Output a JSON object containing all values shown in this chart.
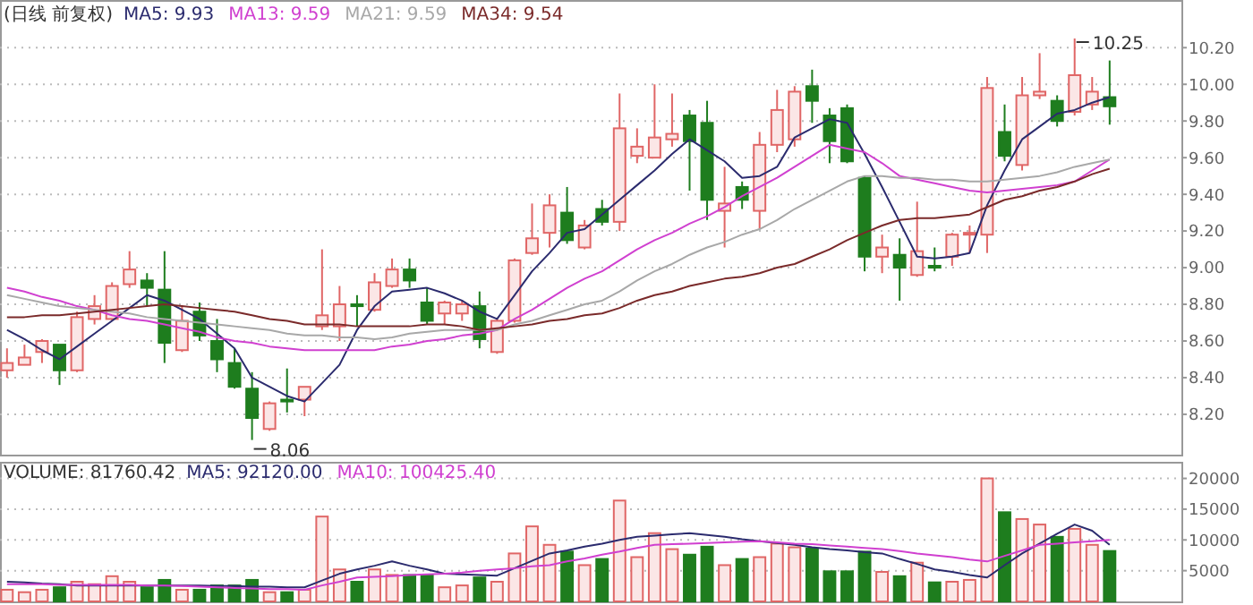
{
  "chart_data": [
    {
      "type": "candlestick",
      "title": "(日线 前复权)",
      "grid": "y",
      "tick_labels": "y",
      "categories": [
        null,
        null,
        null,
        null,
        null,
        null,
        null,
        null,
        null,
        null,
        null,
        null,
        null,
        null,
        null,
        null,
        null,
        null,
        null,
        null,
        null,
        null,
        null,
        null,
        null,
        null,
        null,
        null,
        null,
        null,
        null,
        null,
        null,
        null,
        null,
        null,
        null,
        null,
        null,
        null,
        null,
        null,
        null,
        null,
        null,
        null,
        null,
        null,
        null,
        null,
        null,
        null,
        null,
        null,
        null,
        null,
        null,
        null,
        null,
        null,
        null,
        null,
        null,
        null
      ],
      "ylim": [
        7.98,
        10.46
      ],
      "yticks": [
        {
          "value": 8.2,
          "label": "8.20"
        },
        {
          "value": 8.4,
          "label": "8.40"
        },
        {
          "value": 8.6,
          "label": "8.60"
        },
        {
          "value": 8.8,
          "label": "8.80"
        },
        {
          "value": 9.0,
          "label": "9.00"
        },
        {
          "value": 9.2,
          "label": "9.20"
        },
        {
          "value": 9.4,
          "label": "9.40"
        },
        {
          "value": 9.6,
          "label": "9.60"
        },
        {
          "value": 9.8,
          "label": "9.80"
        },
        {
          "value": 10.0,
          "label": "10.00"
        },
        {
          "value": 10.2,
          "label": "10.20"
        }
      ],
      "ohlc": [
        [
          8.44,
          8.56,
          8.4,
          8.48
        ],
        [
          8.47,
          8.58,
          8.47,
          8.51
        ],
        [
          8.54,
          8.61,
          8.48,
          8.6
        ],
        [
          8.58,
          8.58,
          8.36,
          8.44
        ],
        [
          8.44,
          8.76,
          8.43,
          8.73
        ],
        [
          8.72,
          8.85,
          8.69,
          8.79
        ],
        [
          8.72,
          8.92,
          8.71,
          8.9
        ],
        [
          8.91,
          9.09,
          8.89,
          8.99
        ],
        [
          8.93,
          8.97,
          8.79,
          8.89
        ],
        [
          8.88,
          9.09,
          8.48,
          8.59
        ],
        [
          8.55,
          8.79,
          8.54,
          8.71
        ],
        [
          8.76,
          8.81,
          8.6,
          8.63
        ],
        [
          8.6,
          8.72,
          8.43,
          8.5
        ],
        [
          8.48,
          8.56,
          8.34,
          8.35
        ],
        [
          8.34,
          8.43,
          8.06,
          8.18
        ],
        [
          8.12,
          8.27,
          8.11,
          8.26
        ],
        [
          8.28,
          8.45,
          8.21,
          8.27
        ],
        [
          8.28,
          8.35,
          8.19,
          8.35
        ],
        [
          8.68,
          9.1,
          8.66,
          8.74
        ],
        [
          8.68,
          8.9,
          8.6,
          8.8
        ],
        [
          8.8,
          8.85,
          8.68,
          8.79
        ],
        [
          8.77,
          8.97,
          8.76,
          8.92
        ],
        [
          8.9,
          9.05,
          8.89,
          8.99
        ],
        [
          8.99,
          9.05,
          8.89,
          8.93
        ],
        [
          8.81,
          8.89,
          8.69,
          8.71
        ],
        [
          8.75,
          8.82,
          8.69,
          8.81
        ],
        [
          8.75,
          8.82,
          8.71,
          8.8
        ],
        [
          8.79,
          8.87,
          8.56,
          8.61
        ],
        [
          8.54,
          8.72,
          8.53,
          8.71
        ],
        [
          8.71,
          9.05,
          8.7,
          9.04
        ],
        [
          9.08,
          9.35,
          9.07,
          9.16
        ],
        [
          9.19,
          9.4,
          9.11,
          9.34
        ],
        [
          9.3,
          9.44,
          9.13,
          9.15
        ],
        [
          9.11,
          9.26,
          9.1,
          9.23
        ],
        [
          9.32,
          9.37,
          9.23,
          9.25
        ],
        [
          9.25,
          9.95,
          9.2,
          9.76
        ],
        [
          9.61,
          9.76,
          9.57,
          9.66
        ],
        [
          9.6,
          10.0,
          9.6,
          9.71
        ],
        [
          9.7,
          9.95,
          9.66,
          9.73
        ],
        [
          9.83,
          9.86,
          9.42,
          9.69
        ],
        [
          9.79,
          9.91,
          9.26,
          9.37
        ],
        [
          9.31,
          9.55,
          9.11,
          9.35
        ],
        [
          9.44,
          9.47,
          9.32,
          9.37
        ],
        [
          9.31,
          9.74,
          9.21,
          9.67
        ],
        [
          9.67,
          9.97,
          9.63,
          9.86
        ],
        [
          9.7,
          9.99,
          9.66,
          9.96
        ],
        [
          9.99,
          10.08,
          9.79,
          9.91
        ],
        [
          9.83,
          9.87,
          9.57,
          9.69
        ],
        [
          9.87,
          9.89,
          9.57,
          9.58
        ],
        [
          9.49,
          9.5,
          8.98,
          9.06
        ],
        [
          9.06,
          9.18,
          8.97,
          9.11
        ],
        [
          9.07,
          9.16,
          8.82,
          9.0
        ],
        [
          8.96,
          9.36,
          8.95,
          9.09
        ],
        [
          9.01,
          9.11,
          8.98,
          9.0
        ],
        [
          9.06,
          9.19,
          9.01,
          9.18
        ],
        [
          9.18,
          9.23,
          9.08,
          9.19
        ],
        [
          9.18,
          10.04,
          9.08,
          9.98
        ],
        [
          9.74,
          9.89,
          9.58,
          9.61
        ],
        [
          9.56,
          10.04,
          9.53,
          9.94
        ],
        [
          9.94,
          10.17,
          9.92,
          9.96
        ],
        [
          9.91,
          9.94,
          9.77,
          9.8
        ],
        [
          9.85,
          10.25,
          9.83,
          10.05
        ],
        [
          9.89,
          10.04,
          9.86,
          9.96
        ],
        [
          9.93,
          10.13,
          9.78,
          9.88
        ]
      ],
      "colors": [
        "#e06666",
        "#e06666",
        "#e06666",
        "#1e7d1e",
        "#e06666",
        "#e06666",
        "#e06666",
        "#e06666",
        "#1e7d1e",
        "#1e7d1e",
        "#e06666",
        "#1e7d1e",
        "#1e7d1e",
        "#1e7d1e",
        "#1e7d1e",
        "#e06666",
        "#1e7d1e",
        "#e06666",
        "#e06666",
        "#e06666",
        "#1e7d1e",
        "#e06666",
        "#e06666",
        "#1e7d1e",
        "#1e7d1e",
        "#e06666",
        "#e06666",
        "#1e7d1e",
        "#e06666",
        "#e06666",
        "#e06666",
        "#e06666",
        "#1e7d1e",
        "#e06666",
        "#1e7d1e",
        "#e06666",
        "#e06666",
        "#e06666",
        "#e06666",
        "#1e7d1e",
        "#1e7d1e",
        "#e06666",
        "#1e7d1e",
        "#e06666",
        "#e06666",
        "#e06666",
        "#1e7d1e",
        "#1e7d1e",
        "#1e7d1e",
        "#1e7d1e",
        "#e06666",
        "#1e7d1e",
        "#e06666",
        "#1e7d1e",
        "#e06666",
        "#e06666",
        "#e06666",
        "#1e7d1e",
        "#e06666",
        "#e06666",
        "#1e7d1e",
        "#e06666",
        "#e06666",
        "#1e7d1e"
      ],
      "series": [
        {
          "type": "line",
          "name": "MA5: 9.93",
          "color": "#2b2b6e",
          "values": [
            8.66,
            8.61,
            8.55,
            8.5,
            8.57,
            8.64,
            8.71,
            8.78,
            8.85,
            8.82,
            8.77,
            8.72,
            8.64,
            8.56,
            8.4,
            8.35,
            8.3,
            8.27,
            8.37,
            8.47,
            8.66,
            8.79,
            8.87,
            8.88,
            8.89,
            8.86,
            8.82,
            8.76,
            8.72,
            8.85,
            8.98,
            9.08,
            9.19,
            9.21,
            9.29,
            9.37,
            9.45,
            9.53,
            9.62,
            9.7,
            9.64,
            9.58,
            9.49,
            9.5,
            9.55,
            9.71,
            9.76,
            9.81,
            9.79,
            9.62,
            9.44,
            9.25,
            9.06,
            9.05,
            9.06,
            9.08,
            9.34,
            9.53,
            9.7,
            9.77,
            9.84,
            9.86,
            9.9,
            9.93
          ]
        },
        {
          "type": "line",
          "name": "MA13: 9.59",
          "color": "#d040d0",
          "values": [
            8.89,
            8.87,
            8.84,
            8.82,
            8.79,
            8.77,
            8.74,
            8.72,
            8.71,
            8.69,
            8.67,
            8.65,
            8.62,
            8.6,
            8.59,
            8.57,
            8.56,
            8.55,
            8.55,
            8.55,
            8.55,
            8.55,
            8.57,
            8.58,
            8.6,
            8.61,
            8.63,
            8.64,
            8.66,
            8.72,
            8.77,
            8.83,
            8.89,
            8.94,
            8.98,
            9.04,
            9.1,
            9.15,
            9.19,
            9.24,
            9.28,
            9.33,
            9.39,
            9.44,
            9.49,
            9.55,
            9.61,
            9.67,
            9.65,
            9.63,
            9.57,
            9.5,
            9.48,
            9.46,
            9.44,
            9.42,
            9.41,
            9.42,
            9.43,
            9.44,
            9.45,
            9.47,
            9.53,
            9.59
          ]
        },
        {
          "type": "line",
          "name": "MA21: 9.59",
          "color": "#a8a8a8",
          "values": [
            8.85,
            8.83,
            8.81,
            8.79,
            8.78,
            8.77,
            8.76,
            8.75,
            8.73,
            8.72,
            8.71,
            8.7,
            8.69,
            8.68,
            8.67,
            8.66,
            8.64,
            8.63,
            8.63,
            8.62,
            8.62,
            8.61,
            8.62,
            8.64,
            8.65,
            8.66,
            8.66,
            8.66,
            8.66,
            8.69,
            8.71,
            8.74,
            8.77,
            8.8,
            8.82,
            8.87,
            8.93,
            8.98,
            9.02,
            9.07,
            9.11,
            9.14,
            9.18,
            9.21,
            9.26,
            9.32,
            9.37,
            9.42,
            9.47,
            9.5,
            9.5,
            9.49,
            9.49,
            9.48,
            9.48,
            9.47,
            9.47,
            9.48,
            9.49,
            9.5,
            9.52,
            9.55,
            9.57,
            9.59
          ]
        },
        {
          "type": "line",
          "name": "MA34: 9.54",
          "color": "#7a2a2a",
          "values": [
            8.73,
            8.73,
            8.74,
            8.74,
            8.75,
            8.76,
            8.77,
            8.78,
            8.79,
            8.8,
            8.79,
            8.78,
            8.77,
            8.76,
            8.74,
            8.72,
            8.71,
            8.69,
            8.69,
            8.69,
            8.68,
            8.68,
            8.68,
            8.68,
            8.69,
            8.69,
            8.68,
            8.66,
            8.67,
            8.68,
            8.69,
            8.71,
            8.72,
            8.74,
            8.75,
            8.78,
            8.82,
            8.85,
            8.87,
            8.9,
            8.92,
            8.94,
            8.95,
            8.97,
            9.0,
            9.02,
            9.06,
            9.1,
            9.15,
            9.19,
            9.23,
            9.26,
            9.27,
            9.27,
            9.28,
            9.29,
            9.33,
            9.37,
            9.39,
            9.42,
            9.44,
            9.47,
            9.51,
            9.54
          ]
        }
      ],
      "annotations": [
        "8.06",
        "10.25"
      ]
    },
    {
      "type": "bar",
      "title": "VOLUME: 81760.42",
      "grid": "y",
      "tick_labels": "y",
      "categories": [
        null,
        null,
        null,
        null,
        null,
        null,
        null,
        null,
        null,
        null,
        null,
        null,
        null,
        null,
        null,
        null,
        null,
        null,
        null,
        null,
        null,
        null,
        null,
        null,
        null,
        null,
        null,
        null,
        null,
        null,
        null,
        null,
        null,
        null,
        null,
        null,
        null,
        null,
        null,
        null,
        null,
        null,
        null,
        null,
        null,
        null,
        null,
        null,
        null,
        null,
        null,
        null,
        null,
        null,
        null,
        null,
        null,
        null,
        null,
        null,
        null,
        null,
        null,
        null
      ],
      "ylim": [
        0,
        22700
      ],
      "yticks": [
        5000,
        10000,
        15000,
        20000
      ],
      "series": [
        {
          "type": "bar",
          "values": [
            1900,
            1500,
            1900,
            2300,
            3200,
            2800,
            4100,
            3200,
            2300,
            3500,
            1900,
            1900,
            2600,
            2600,
            3500,
            1500,
            1500,
            1900,
            13800,
            5200,
            3200,
            5200,
            4300,
            4300,
            4300,
            2300,
            2600,
            3900,
            3200,
            7800,
            12200,
            9200,
            8100,
            5900,
            6900,
            16400,
            7200,
            11100,
            8500,
            7600,
            8900,
            5900,
            6900,
            7200,
            9400,
            8800,
            8600,
            4900,
            4900,
            8100,
            4800,
            4100,
            6300,
            3100,
            3200,
            3500,
            20000,
            14500,
            13400,
            12500,
            10500,
            11800,
            9200,
            8200
          ],
          "colors": [
            "#e06666",
            "#e06666",
            "#e06666",
            "#1e7d1e",
            "#e06666",
            "#e06666",
            "#e06666",
            "#e06666",
            "#1e7d1e",
            "#1e7d1e",
            "#e06666",
            "#1e7d1e",
            "#1e7d1e",
            "#1e7d1e",
            "#1e7d1e",
            "#e06666",
            "#1e7d1e",
            "#e06666",
            "#e06666",
            "#e06666",
            "#1e7d1e",
            "#e06666",
            "#e06666",
            "#1e7d1e",
            "#1e7d1e",
            "#e06666",
            "#e06666",
            "#1e7d1e",
            "#e06666",
            "#e06666",
            "#e06666",
            "#e06666",
            "#1e7d1e",
            "#e06666",
            "#1e7d1e",
            "#e06666",
            "#e06666",
            "#e06666",
            "#e06666",
            "#1e7d1e",
            "#1e7d1e",
            "#e06666",
            "#1e7d1e",
            "#e06666",
            "#e06666",
            "#e06666",
            "#1e7d1e",
            "#1e7d1e",
            "#1e7d1e",
            "#1e7d1e",
            "#e06666",
            "#1e7d1e",
            "#e06666",
            "#1e7d1e",
            "#e06666",
            "#e06666",
            "#e06666",
            "#1e7d1e",
            "#e06666",
            "#e06666",
            "#1e7d1e",
            "#e06666",
            "#e06666",
            "#1e7d1e"
          ]
        },
        {
          "type": "line",
          "name": "MA5: 92120.00",
          "color": "#2b2b6e",
          "values": [
            3200,
            3100,
            2900,
            2800,
            2600,
            2600,
            2600,
            2600,
            2600,
            2600,
            2600,
            2600,
            2500,
            2500,
            2400,
            2400,
            2300,
            2300,
            3400,
            4500,
            5200,
            5800,
            6500,
            5800,
            5200,
            4500,
            4400,
            4300,
            4200,
            5400,
            6600,
            7800,
            8300,
            8900,
            9400,
            10000,
            10500,
            10700,
            10900,
            11100,
            10800,
            10500,
            10100,
            9800,
            9500,
            9200,
            8800,
            8500,
            8300,
            8000,
            7800,
            6900,
            6100,
            5200,
            4800,
            4300,
            3900,
            5900,
            7800,
            9400,
            11000,
            12500,
            11500,
            9200
          ]
        },
        {
          "type": "line",
          "name": "MA10: 100425.40",
          "color": "#d040d0",
          "values": [
            2800,
            2800,
            2800,
            2700,
            2700,
            2700,
            2700,
            2700,
            2600,
            2600,
            2500,
            2400,
            2300,
            2200,
            2100,
            2000,
            2000,
            1900,
            2600,
            3200,
            3900,
            4000,
            4100,
            4300,
            4400,
            4500,
            4700,
            5000,
            5200,
            5400,
            5700,
            5900,
            6500,
            7000,
            7600,
            8100,
            8700,
            9200,
            9300,
            9400,
            9500,
            9600,
            9700,
            9800,
            9600,
            9400,
            9300,
            9100,
            8900,
            8700,
            8500,
            8200,
            7800,
            7500,
            7200,
            6800,
            6500,
            7400,
            8300,
            9200,
            9400,
            9600,
            9800,
            10000
          ]
        }
      ]
    }
  ]
}
